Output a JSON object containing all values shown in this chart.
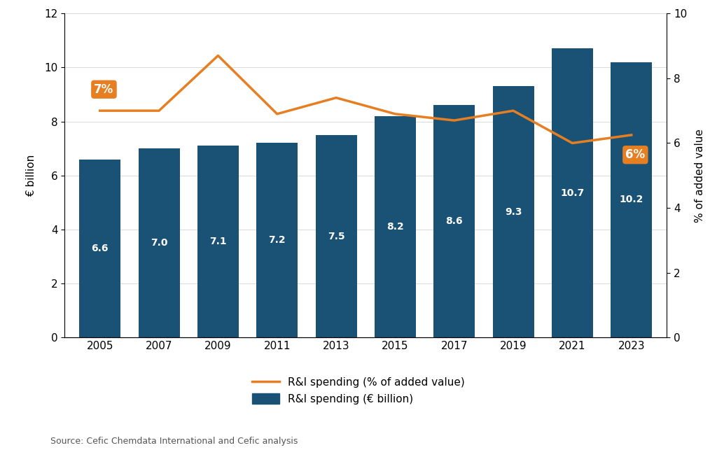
{
  "years": [
    2005,
    2007,
    2009,
    2011,
    2013,
    2015,
    2017,
    2019,
    2021,
    2023
  ],
  "bar_values": [
    6.6,
    7.0,
    7.1,
    7.2,
    7.5,
    8.2,
    8.6,
    9.3,
    10.7,
    10.2
  ],
  "line_values": [
    7.0,
    7.0,
    8.7,
    6.9,
    7.4,
    6.9,
    6.7,
    7.0,
    6.0,
    6.25
  ],
  "bar_color": "#1a5276",
  "line_color": "#e67e22",
  "bar_label_color": "#ffffff",
  "annotation_label_color": "#ffffff",
  "ylabel_left": "€ billion",
  "ylabel_right": "% of added value",
  "ylim_left": [
    0,
    12
  ],
  "ylim_right": [
    0,
    10
  ],
  "yticks_left": [
    0,
    2,
    4,
    6,
    8,
    10,
    12
  ],
  "yticks_right": [
    0,
    2,
    4,
    6,
    8,
    10
  ],
  "legend_line_label": "R&I spending (% of added value)",
  "legend_bar_label": "R&I spending (€ billion)",
  "source_text": "Source: Cefic Chemdata International and Cefic analysis",
  "annotation_7pct_text": "7%",
  "annotation_7pct_year": 2005,
  "annotation_7pct_value": 7.0,
  "annotation_6pct_text": "6%",
  "annotation_6pct_year": 2023,
  "annotation_6pct_value": 6.25,
  "background_color": "#ffffff",
  "bar_width": 1.4,
  "bar_fontsize": 10,
  "axis_fontsize": 11,
  "legend_fontsize": 11,
  "source_fontsize": 9
}
